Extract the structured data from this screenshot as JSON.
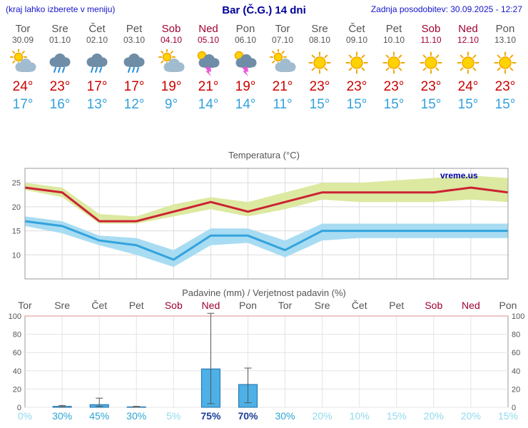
{
  "header": {
    "hint": "(kraj lahko izberete v meniju)",
    "title": "Bar (Č.G.) 14 dni",
    "updated": "Zadnja posodobitev: 30.09.2025 - 12:27"
  },
  "colors": {
    "max_temp": "#cc0000",
    "min_temp": "#33a0dd",
    "weekend": "#a00030",
    "link_blue": "#1414cc",
    "title_blue": "#000099"
  },
  "days": [
    {
      "name": "Tor",
      "date": "30.09",
      "weekend": false,
      "icon": "partly-cloudy",
      "tmax": "24°",
      "tmin": "17°"
    },
    {
      "name": "Sre",
      "date": "01.10",
      "weekend": false,
      "icon": "rain",
      "tmax": "23°",
      "tmin": "16°"
    },
    {
      "name": "Čet",
      "date": "02.10",
      "weekend": false,
      "icon": "rain",
      "tmax": "17°",
      "tmin": "13°"
    },
    {
      "name": "Pet",
      "date": "03.10",
      "weekend": false,
      "icon": "rain",
      "tmax": "17°",
      "tmin": "12°"
    },
    {
      "name": "Sob",
      "date": "04.10",
      "weekend": true,
      "icon": "partly-cloudy",
      "tmax": "19°",
      "tmin": "9°"
    },
    {
      "name": "Ned",
      "date": "05.10",
      "weekend": true,
      "icon": "thunder",
      "tmax": "21°",
      "tmin": "14°"
    },
    {
      "name": "Pon",
      "date": "06.10",
      "weekend": false,
      "icon": "thunder",
      "tmax": "19°",
      "tmin": "14°"
    },
    {
      "name": "Tor",
      "date": "07.10",
      "weekend": false,
      "icon": "partly-cloudy",
      "tmax": "21°",
      "tmin": "11°"
    },
    {
      "name": "Sre",
      "date": "08.10",
      "weekend": false,
      "icon": "sunny",
      "tmax": "23°",
      "tmin": "15°"
    },
    {
      "name": "Čet",
      "date": "09.10",
      "weekend": false,
      "icon": "sunny",
      "tmax": "23°",
      "tmin": "15°"
    },
    {
      "name": "Pet",
      "date": "10.10",
      "weekend": false,
      "icon": "sunny",
      "tmax": "23°",
      "tmin": "15°"
    },
    {
      "name": "Sob",
      "date": "11.10",
      "weekend": true,
      "icon": "sunny",
      "tmax": "23°",
      "tmin": "15°"
    },
    {
      "name": "Ned",
      "date": "12.10",
      "weekend": true,
      "icon": "sunny",
      "tmax": "24°",
      "tmin": "15°"
    },
    {
      "name": "Pon",
      "date": "13.10",
      "weekend": false,
      "icon": "sunny",
      "tmax": "23°",
      "tmin": "15°"
    }
  ],
  "chart_data": [
    {
      "type": "line",
      "title": "Temperatura (°C)",
      "watermark": "vreme.us",
      "x_categories": [
        "Tor 30.09",
        "Sre 01.10",
        "Čet 02.10",
        "Pet 03.10",
        "Sob 04.10",
        "Ned 05.10",
        "Pon 06.10",
        "Tor 07.10",
        "Sre 08.10",
        "Čet 09.10",
        "Pet 10.10",
        "Sob 11.10",
        "Ned 12.10",
        "Pon 13.10"
      ],
      "ylim": [
        5,
        28
      ],
      "yticks": [
        10,
        15,
        20,
        25
      ],
      "grid": true,
      "series": [
        {
          "name": "max",
          "color": "#cc2233",
          "band_color": "#dce9a0",
          "values": [
            24,
            23,
            17,
            17,
            19,
            21,
            19,
            21,
            23,
            23,
            23,
            23,
            24,
            23
          ],
          "band_hi": [
            25,
            24,
            18.5,
            18,
            20.5,
            22,
            21,
            23,
            25,
            25,
            25.5,
            26,
            26.5,
            26
          ],
          "band_lo": [
            23.5,
            22,
            16.5,
            16.5,
            18,
            19.5,
            18,
            19.5,
            21.5,
            21,
            21,
            21,
            21.5,
            21
          ]
        },
        {
          "name": "min",
          "color": "#33a3dd",
          "band_color": "#a8dcf2",
          "values": [
            17,
            16,
            13,
            12,
            9,
            14,
            14,
            11,
            15,
            15,
            15,
            15,
            15,
            15
          ],
          "band_hi": [
            18,
            17,
            14,
            13.5,
            11,
            15.5,
            15.5,
            13,
            16.5,
            16.5,
            16.5,
            16.5,
            16.5,
            16.5
          ],
          "band_lo": [
            16,
            14.5,
            12,
            10,
            7.5,
            12,
            12.5,
            9.5,
            13,
            13.5,
            13.5,
            13.5,
            13.5,
            13.5
          ]
        }
      ]
    },
    {
      "type": "bar",
      "title": "Padavine (mm) / Verjetnost padavin (%)",
      "day_labels": [
        "Tor",
        "Sre",
        "Čet",
        "Pet",
        "Sob",
        "Ned",
        "Pon",
        "Tor",
        "Sre",
        "Čet",
        "Pet",
        "Sob",
        "Ned",
        "Pon"
      ],
      "weekend_mask": [
        false,
        false,
        false,
        false,
        true,
        true,
        false,
        false,
        false,
        false,
        false,
        true,
        true,
        false
      ],
      "ylim": [
        0,
        100
      ],
      "yticks": [
        0,
        20,
        40,
        60,
        80,
        100
      ],
      "precip_mm": [
        0,
        1,
        3,
        0.5,
        0,
        42,
        25,
        0,
        0,
        0,
        0,
        0,
        0,
        0
      ],
      "whisker_hi": [
        0,
        2,
        10,
        1,
        0,
        103,
        43,
        0,
        0,
        0,
        0,
        0,
        0,
        0
      ],
      "whisker_lo": [
        0,
        0,
        1,
        0,
        0,
        4,
        5,
        0,
        0,
        0,
        0,
        0,
        0,
        0
      ],
      "probability_pct": [
        0,
        30,
        45,
        30,
        5,
        75,
        70,
        30,
        20,
        10,
        15,
        20,
        20,
        15
      ],
      "prob_thresholds": {
        "high": 60,
        "med": 25
      },
      "bar_fill": "#4db0e6",
      "bar_stroke": "#1d6fa8"
    }
  ]
}
